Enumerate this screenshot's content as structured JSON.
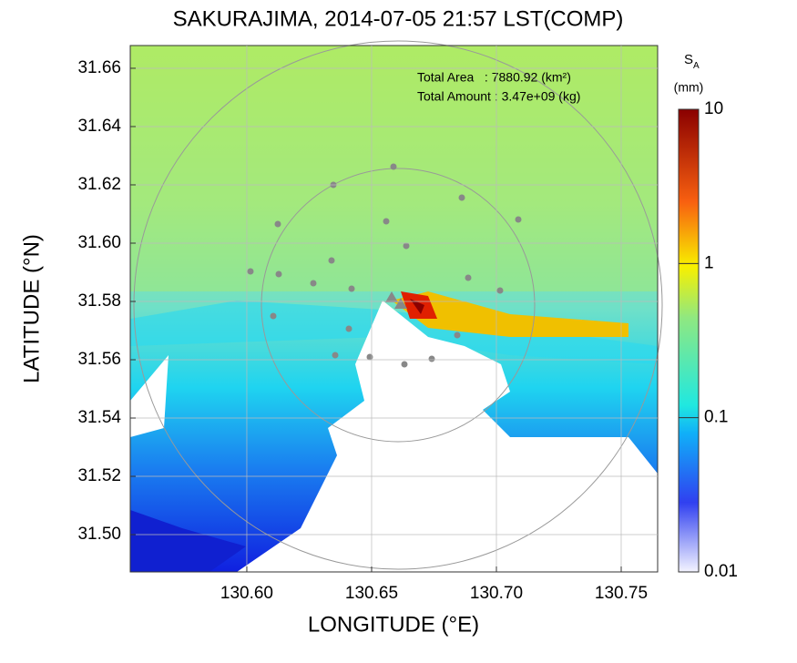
{
  "chart_data": {
    "type": "map",
    "title": "SAKURAJIMA, 2014-07-05 21:57 LST(COMP)",
    "x_label": "LONGITUDE (°E)",
    "y_label": "LATITUDE (°N)",
    "xlim": [
      130.5533,
      130.7646
    ],
    "ylim": [
      31.4872,
      31.6678
    ],
    "xticks": [
      {
        "value": 130.6,
        "label": "130.60"
      },
      {
        "value": 130.65,
        "label": "130.65"
      },
      {
        "value": 130.7,
        "label": "130.70"
      },
      {
        "value": 130.75,
        "label": "130.75"
      }
    ],
    "yticks": [
      {
        "value": 31.5,
        "label": "31.50"
      },
      31.52,
      31.54,
      31.56,
      31.58,
      {
        "value": 31.6,
        "label": "31.60"
      },
      31.62,
      31.64,
      31.66
    ],
    "grid": true,
    "annotations": [
      "Total Area   : 7880.92 (km²)",
      "Total Amount : 3.47e+09 (kg)"
    ],
    "colorbar": {
      "title": "S",
      "subscript": "A",
      "unit": "(mm)",
      "log": true,
      "lim": [
        0.01,
        10
      ],
      "ticks": [
        0.01,
        0.1,
        1,
        10
      ]
    }
  }
}
